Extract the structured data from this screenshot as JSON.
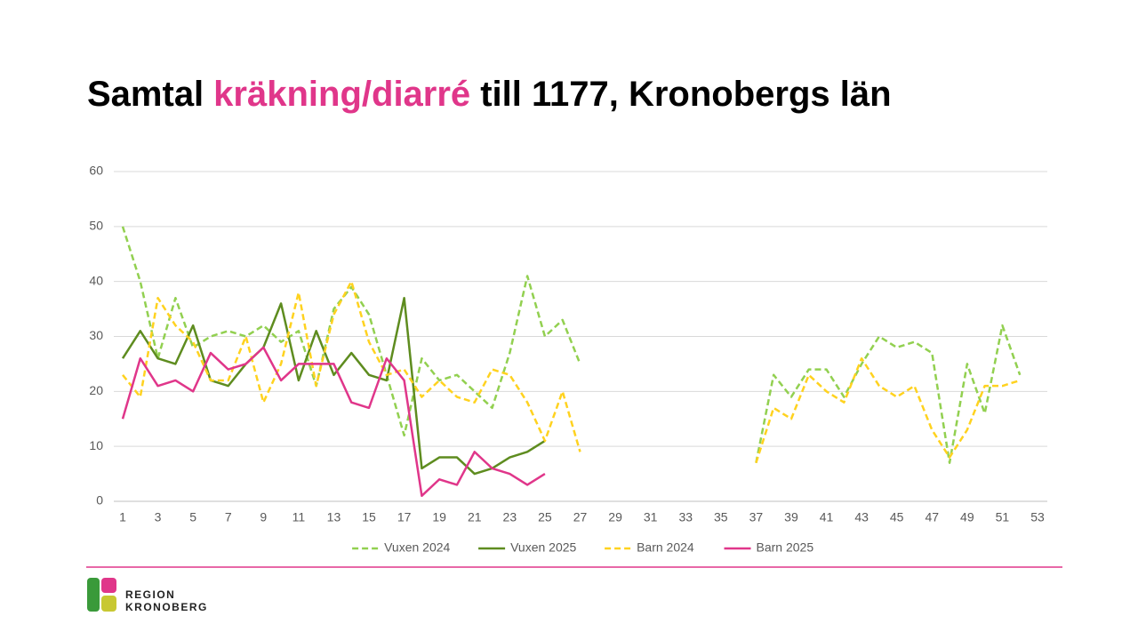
{
  "title": [
    "Samtal",
    "kräkning/diarré",
    "till 1177, Kronobergs län"
  ],
  "logo": [
    "REGION",
    "KRONOBERG"
  ],
  "chart_data": {
    "type": "line",
    "x": [
      1,
      2,
      3,
      4,
      5,
      6,
      7,
      8,
      9,
      10,
      11,
      12,
      13,
      14,
      15,
      16,
      17,
      18,
      19,
      20,
      21,
      22,
      23,
      24,
      25,
      26,
      27,
      28,
      29,
      30,
      31,
      32,
      33,
      34,
      35,
      36,
      37,
      38,
      39,
      40,
      41,
      42,
      43,
      44,
      45,
      46,
      47,
      48,
      49,
      50,
      51,
      52,
      53
    ],
    "xlim": [
      1,
      53
    ],
    "xticks": [
      1,
      3,
      5,
      7,
      9,
      11,
      13,
      15,
      17,
      19,
      21,
      23,
      25,
      27,
      29,
      31,
      33,
      35,
      37,
      39,
      41,
      43,
      45,
      47,
      49,
      51,
      53
    ],
    "ylim": [
      0,
      60
    ],
    "yticks": [
      0,
      10,
      20,
      30,
      40,
      50,
      60
    ],
    "grid": true,
    "legend": "bottom",
    "series": [
      {
        "name": "Vuxen 2024",
        "color": "#92d050",
        "dashed": true,
        "values": [
          50,
          40,
          26,
          37,
          28,
          30,
          31,
          30,
          32,
          29,
          31,
          21,
          35,
          39,
          34,
          23,
          12,
          26,
          22,
          23,
          20,
          17,
          27,
          41,
          30,
          33,
          25,
          null,
          null,
          null,
          null,
          null,
          null,
          null,
          null,
          null,
          7,
          23,
          19,
          24,
          24,
          19,
          25,
          30,
          28,
          29,
          27,
          7,
          25,
          16,
          32,
          23,
          null
        ]
      },
      {
        "name": "Vuxen 2025",
        "color": "#5e8c1f",
        "dashed": false,
        "values": [
          26,
          31,
          26,
          25,
          32,
          22,
          21,
          25,
          28,
          36,
          22,
          31,
          23,
          27,
          23,
          22,
          37,
          6,
          8,
          8,
          5,
          6,
          8,
          9,
          11,
          null,
          null,
          null,
          null,
          null,
          null,
          null,
          null,
          null,
          null,
          null,
          null,
          null,
          null,
          null,
          null,
          null,
          null,
          null,
          null,
          null,
          null,
          null,
          null,
          null,
          null,
          null,
          null
        ]
      },
      {
        "name": "Barn 2024",
        "color": "#ffd21f",
        "dashed": true,
        "values": [
          23,
          19,
          37,
          32,
          29,
          22,
          22,
          30,
          18,
          25,
          38,
          21,
          34,
          40,
          29,
          23,
          24,
          19,
          22,
          19,
          18,
          24,
          23,
          18,
          11,
          20,
          9,
          null,
          null,
          null,
          null,
          null,
          null,
          null,
          null,
          null,
          7,
          17,
          15,
          23,
          20,
          18,
          26,
          21,
          19,
          21,
          13,
          8,
          13,
          21,
          21,
          22,
          null
        ]
      },
      {
        "name": "Barn 2025",
        "color": "#e0368a",
        "dashed": false,
        "values": [
          15,
          26,
          21,
          22,
          20,
          27,
          24,
          25,
          28,
          22,
          25,
          25,
          25,
          18,
          17,
          26,
          22,
          1,
          4,
          3,
          9,
          6,
          5,
          3,
          5,
          null,
          null,
          null,
          null,
          null,
          null,
          null,
          null,
          null,
          null,
          null,
          null,
          null,
          null,
          null,
          null,
          null,
          null,
          null,
          null,
          null,
          null,
          null,
          null,
          null,
          null,
          null,
          null
        ]
      }
    ]
  }
}
